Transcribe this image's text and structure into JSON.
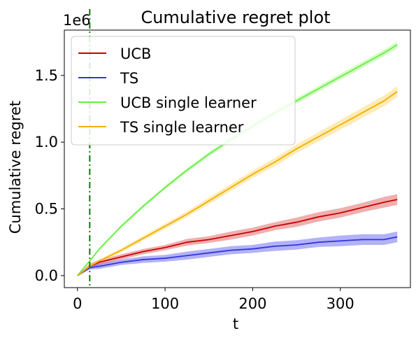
{
  "chart_data": {
    "type": "line",
    "title": "Cumulative regret plot",
    "xlabel": "t",
    "ylabel": "Cumulative regret",
    "y_scale_label": "1e6",
    "xlim": [
      -15,
      380
    ],
    "ylim": [
      -0.09,
      1.84
    ],
    "x_ticks": [
      0,
      100,
      200,
      300
    ],
    "x_tick_labels": [
      "0",
      "100",
      "200",
      "300"
    ],
    "y_ticks": [
      0.0,
      0.5,
      1.0,
      1.5
    ],
    "y_tick_labels": [
      "0.0",
      "0.5",
      "1.0",
      "1.5"
    ],
    "grid": false,
    "legend_position": "top-left",
    "vline": {
      "x": 14,
      "color": "#008000",
      "style": "dash-dot"
    },
    "series": [
      {
        "name": "UCB",
        "color": "#cc0000",
        "band_color": "#e06060",
        "x": [
          0,
          14,
          25,
          50,
          75,
          100,
          125,
          150,
          175,
          200,
          225,
          250,
          275,
          300,
          325,
          350,
          365
        ],
        "y": [
          0.0,
          0.07,
          0.1,
          0.14,
          0.18,
          0.21,
          0.25,
          0.27,
          0.3,
          0.33,
          0.37,
          0.4,
          0.44,
          0.47,
          0.51,
          0.55,
          0.57
        ],
        "band": [
          0.0,
          0.02,
          0.02,
          0.02,
          0.02,
          0.02,
          0.025,
          0.025,
          0.03,
          0.03,
          0.03,
          0.035,
          0.035,
          0.035,
          0.035,
          0.04,
          0.04
        ]
      },
      {
        "name": "TS",
        "color": "#3333dd",
        "band_color": "#6666f0",
        "x": [
          0,
          14,
          25,
          50,
          75,
          100,
          125,
          150,
          175,
          200,
          225,
          250,
          275,
          300,
          325,
          350,
          365
        ],
        "y": [
          0.0,
          0.06,
          0.07,
          0.1,
          0.12,
          0.13,
          0.15,
          0.17,
          0.19,
          0.2,
          0.22,
          0.23,
          0.25,
          0.26,
          0.27,
          0.27,
          0.29
        ],
        "band": [
          0.0,
          0.015,
          0.02,
          0.02,
          0.025,
          0.025,
          0.03,
          0.03,
          0.03,
          0.03,
          0.035,
          0.035,
          0.035,
          0.04,
          0.04,
          0.04,
          0.04
        ]
      },
      {
        "name": "UCB single learner",
        "color": "#66ee44",
        "band_color": "#aaff88",
        "x": [
          0,
          14,
          25,
          50,
          75,
          100,
          125,
          150,
          175,
          200,
          225,
          250,
          275,
          300,
          325,
          350,
          365
        ],
        "y": [
          0.0,
          0.11,
          0.2,
          0.37,
          0.52,
          0.66,
          0.79,
          0.91,
          1.02,
          1.12,
          1.22,
          1.31,
          1.4,
          1.49,
          1.58,
          1.67,
          1.73
        ],
        "band": [
          0.0,
          0.005,
          0.008,
          0.01,
          0.012,
          0.013,
          0.015,
          0.016,
          0.017,
          0.018,
          0.019,
          0.02,
          0.021,
          0.022,
          0.023,
          0.024,
          0.025
        ]
      },
      {
        "name": "TS single learner",
        "color": "#f0b000",
        "band_color": "#ffd870",
        "x": [
          0,
          14,
          25,
          50,
          75,
          100,
          125,
          150,
          175,
          200,
          225,
          250,
          275,
          300,
          325,
          350,
          365
        ],
        "y": [
          0.0,
          0.07,
          0.11,
          0.19,
          0.28,
          0.37,
          0.46,
          0.56,
          0.66,
          0.76,
          0.85,
          0.95,
          1.04,
          1.13,
          1.22,
          1.31,
          1.38
        ],
        "band": [
          0.0,
          0.01,
          0.012,
          0.015,
          0.018,
          0.02,
          0.022,
          0.024,
          0.026,
          0.028,
          0.03,
          0.032,
          0.034,
          0.036,
          0.038,
          0.04,
          0.04
        ]
      }
    ]
  }
}
